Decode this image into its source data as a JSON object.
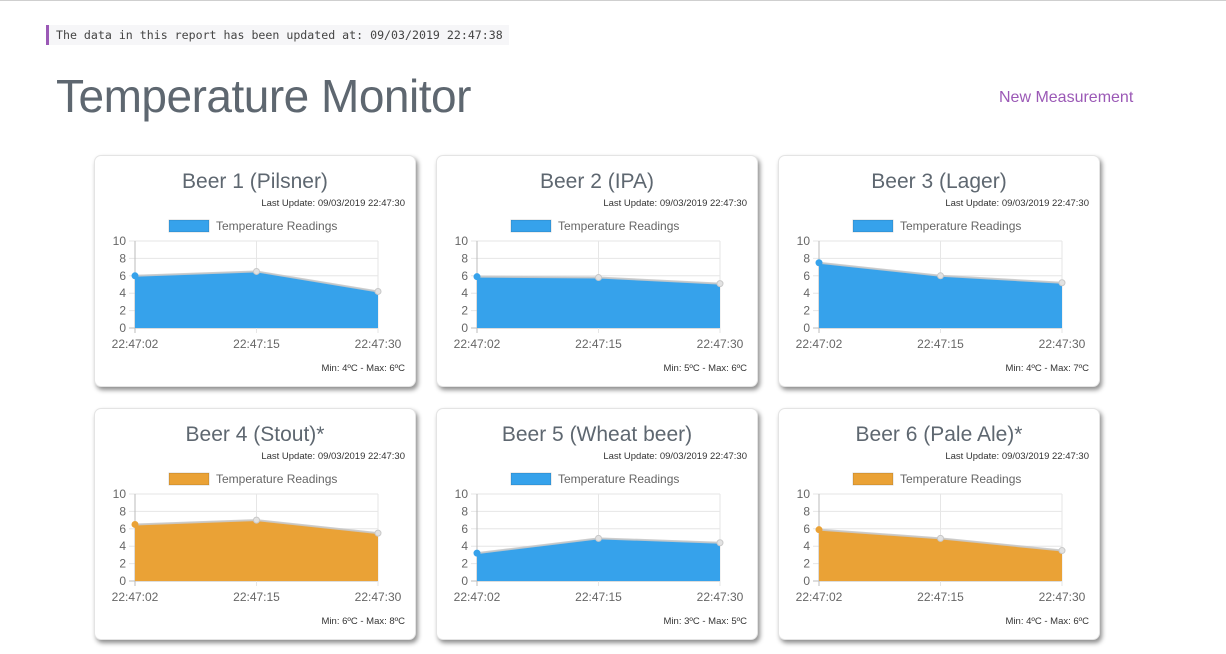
{
  "banner": {
    "text": "The data in this report has been updated at: 09/03/2019 22:47:38"
  },
  "header": {
    "title": "Temperature Monitor",
    "new_measurement": "New Measurement"
  },
  "colors": {
    "blue": "#36a2eb",
    "orange": "#eaa236",
    "accent": "#9b59b6"
  },
  "cards": [
    {
      "title": "Beer 1 (Pilsner)",
      "last_update": "Last Update: 09/03/2019 22:47:30",
      "legend": "Temperature Readings",
      "range": "Min: 4ºC - Max: 6ºC",
      "color": "blue"
    },
    {
      "title": "Beer 2 (IPA)",
      "last_update": "Last Update: 09/03/2019 22:47:30",
      "legend": "Temperature Readings",
      "range": "Min: 5ºC - Max: 6ºC",
      "color": "blue"
    },
    {
      "title": "Beer 3 (Lager)",
      "last_update": "Last Update: 09/03/2019 22:47:30",
      "legend": "Temperature Readings",
      "range": "Min: 4ºC - Max: 7ºC",
      "color": "blue"
    },
    {
      "title": "Beer 4 (Stout)*",
      "last_update": "Last Update: 09/03/2019 22:47:30",
      "legend": "Temperature Readings",
      "range": "Min: 6ºC - Max: 8ºC",
      "color": "orange"
    },
    {
      "title": "Beer 5 (Wheat beer)",
      "last_update": "Last Update: 09/03/2019 22:47:30",
      "legend": "Temperature Readings",
      "range": "Min: 3ºC - Max: 5ºC",
      "color": "blue"
    },
    {
      "title": "Beer 6 (Pale Ale)*",
      "last_update": "Last Update: 09/03/2019 22:47:30",
      "legend": "Temperature Readings",
      "range": "Min: 4ºC - Max: 6ºC",
      "color": "orange"
    }
  ],
  "chart_data": [
    {
      "type": "area",
      "title": "Beer 1 (Pilsner)",
      "legend": "Temperature Readings",
      "categories": [
        "22:47:02",
        "22:47:15",
        "22:47:30"
      ],
      "values": [
        6,
        6.5,
        4.2
      ],
      "ylim": [
        0,
        10
      ],
      "yticks": [
        0,
        2,
        4,
        6,
        8,
        10
      ]
    },
    {
      "type": "area",
      "title": "Beer 2 (IPA)",
      "legend": "Temperature Readings",
      "categories": [
        "22:47:02",
        "22:47:15",
        "22:47:30"
      ],
      "values": [
        5.9,
        5.8,
        5.1
      ],
      "ylim": [
        0,
        10
      ],
      "yticks": [
        0,
        2,
        4,
        6,
        8,
        10
      ]
    },
    {
      "type": "area",
      "title": "Beer 3 (Lager)",
      "legend": "Temperature Readings",
      "categories": [
        "22:47:02",
        "22:47:15",
        "22:47:30"
      ],
      "values": [
        7.5,
        6,
        5.2
      ],
      "ylim": [
        0,
        10
      ],
      "yticks": [
        0,
        2,
        4,
        6,
        8,
        10
      ]
    },
    {
      "type": "area",
      "title": "Beer 4 (Stout)*",
      "legend": "Temperature Readings",
      "categories": [
        "22:47:02",
        "22:47:15",
        "22:47:30"
      ],
      "values": [
        6.5,
        7,
        5.5
      ],
      "ylim": [
        0,
        10
      ],
      "yticks": [
        0,
        2,
        4,
        6,
        8,
        10
      ]
    },
    {
      "type": "area",
      "title": "Beer 5 (Wheat beer)",
      "legend": "Temperature Readings",
      "categories": [
        "22:47:02",
        "22:47:15",
        "22:47:30"
      ],
      "values": [
        3.2,
        4.9,
        4.4
      ],
      "ylim": [
        0,
        10
      ],
      "yticks": [
        0,
        2,
        4,
        6,
        8,
        10
      ]
    },
    {
      "type": "area",
      "title": "Beer 6 (Pale Ale)*",
      "legend": "Temperature Readings",
      "categories": [
        "22:47:02",
        "22:47:15",
        "22:47:30"
      ],
      "values": [
        5.9,
        4.9,
        3.5
      ],
      "ylim": [
        0,
        10
      ],
      "yticks": [
        0,
        2,
        4,
        6,
        8,
        10
      ]
    }
  ]
}
